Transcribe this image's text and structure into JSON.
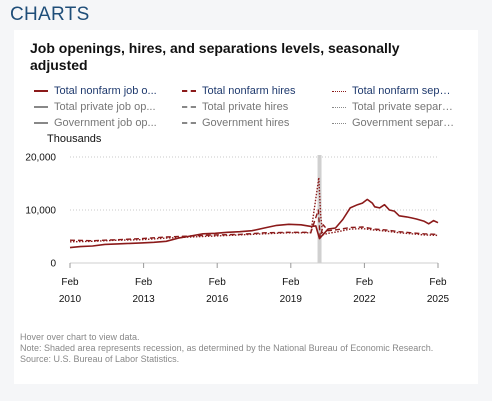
{
  "page": {
    "header": "CHARTS",
    "title": "Job openings, hires, and separations levels, seasonally adjusted",
    "units": "Thousands",
    "hover_note": "Hover over chart to view data.",
    "shaded_note": "Note: Shaded area represents recession, as determined by the National Bureau of Economic Research.",
    "source": "Source: U.S. Bureau of Labor Statistics."
  },
  "legend": [
    {
      "label": "Total nonfarm job o...",
      "color": "#8b1a1a",
      "style": "solid",
      "label_color": "#1f3a6e"
    },
    {
      "label": "Total nonfarm hires",
      "color": "#8b1a1a",
      "style": "dashed",
      "label_color": "#1f3a6e"
    },
    {
      "label": "Total nonfarm separ...",
      "color": "#8b1a1a",
      "style": "dotted",
      "label_color": "#1f3a6e"
    },
    {
      "label": "Total private job op...",
      "color": "#888888",
      "style": "solid",
      "label_color": "#777777"
    },
    {
      "label": "Total private hires",
      "color": "#888888",
      "style": "dashed",
      "label_color": "#777777"
    },
    {
      "label": "Total private separa...",
      "color": "#888888",
      "style": "dotted",
      "label_color": "#777777"
    },
    {
      "label": "Government job op...",
      "color": "#888888",
      "style": "solid",
      "label_color": "#777777"
    },
    {
      "label": "Government hires",
      "color": "#888888",
      "style": "dashed",
      "label_color": "#777777"
    },
    {
      "label": "Government separa...",
      "color": "#888888",
      "style": "dotted",
      "label_color": "#777777"
    }
  ],
  "chart_data": {
    "type": "line",
    "ylabel": "Thousands",
    "ylim": [
      0,
      20000
    ],
    "xlim": [
      2010.08,
      2025.08
    ],
    "y_ticks": [
      {
        "value": 0,
        "label": "0"
      },
      {
        "value": 10000,
        "label": "10,000"
      },
      {
        "value": 20000,
        "label": "20,000"
      }
    ],
    "x_ticks": [
      {
        "value": 2010.08,
        "month": "Feb",
        "year": "2010"
      },
      {
        "value": 2013.08,
        "month": "Feb",
        "year": "2013"
      },
      {
        "value": 2016.08,
        "month": "Feb",
        "year": "2016"
      },
      {
        "value": 2019.08,
        "month": "Feb",
        "year": "2019"
      },
      {
        "value": 2022.08,
        "month": "Feb",
        "year": "2022"
      },
      {
        "value": 2025.08,
        "month": "Feb",
        "year": "2025"
      }
    ],
    "recession": {
      "start": 2020.17,
      "end": 2020.33
    },
    "grid": "horizontal-dotted",
    "legend_position": "top",
    "series": [
      {
        "name": "Total nonfarm job o...",
        "style": "solid",
        "color": "#8b1a1a",
        "points": [
          [
            2010.08,
            2900
          ],
          [
            2010.5,
            3100
          ],
          [
            2011.0,
            3200
          ],
          [
            2011.5,
            3500
          ],
          [
            2012.0,
            3600
          ],
          [
            2012.5,
            3700
          ],
          [
            2013.0,
            3800
          ],
          [
            2013.5,
            3900
          ],
          [
            2014.0,
            4100
          ],
          [
            2014.5,
            4700
          ],
          [
            2015.0,
            5100
          ],
          [
            2015.5,
            5500
          ],
          [
            2016.0,
            5600
          ],
          [
            2016.5,
            5800
          ],
          [
            2017.0,
            5900
          ],
          [
            2017.5,
            6100
          ],
          [
            2018.0,
            6600
          ],
          [
            2018.5,
            7100
          ],
          [
            2019.0,
            7300
          ],
          [
            2019.5,
            7200
          ],
          [
            2019.9,
            6900
          ],
          [
            2020.1,
            7000
          ],
          [
            2020.25,
            4600
          ],
          [
            2020.4,
            5400
          ],
          [
            2020.6,
            6400
          ],
          [
            2020.9,
            6600
          ],
          [
            2021.2,
            8200
          ],
          [
            2021.5,
            10400
          ],
          [
            2021.8,
            11000
          ],
          [
            2022.0,
            11300
          ],
          [
            2022.2,
            12000
          ],
          [
            2022.4,
            11300
          ],
          [
            2022.5,
            10600
          ],
          [
            2022.7,
            10400
          ],
          [
            2022.9,
            11000
          ],
          [
            2023.1,
            10000
          ],
          [
            2023.3,
            9800
          ],
          [
            2023.5,
            8900
          ],
          [
            2023.8,
            8700
          ],
          [
            2024.0,
            8500
          ],
          [
            2024.2,
            8300
          ],
          [
            2024.5,
            7900
          ],
          [
            2024.7,
            7400
          ],
          [
            2024.9,
            8000
          ],
          [
            2025.08,
            7600
          ]
        ]
      },
      {
        "name": "Total nonfarm hires",
        "style": "dashed",
        "color": "#8b1a1a",
        "points": [
          [
            2010.08,
            4300
          ],
          [
            2011.0,
            4200
          ],
          [
            2012.0,
            4400
          ],
          [
            2013.0,
            4600
          ],
          [
            2014.0,
            4900
          ],
          [
            2015.0,
            5100
          ],
          [
            2016.0,
            5300
          ],
          [
            2017.0,
            5400
          ],
          [
            2018.0,
            5700
          ],
          [
            2019.0,
            5800
          ],
          [
            2019.9,
            5800
          ],
          [
            2020.2,
            10000
          ],
          [
            2020.28,
            4800
          ],
          [
            2020.4,
            7200
          ],
          [
            2020.6,
            6100
          ],
          [
            2021.0,
            6300
          ],
          [
            2021.5,
            6700
          ],
          [
            2022.0,
            6800
          ],
          [
            2022.5,
            6400
          ],
          [
            2023.0,
            6200
          ],
          [
            2023.5,
            5900
          ],
          [
            2024.0,
            5700
          ],
          [
            2024.5,
            5500
          ],
          [
            2025.08,
            5400
          ]
        ]
      },
      {
        "name": "Total nonfarm separ...",
        "style": "dotted",
        "color": "#8b1a1a",
        "points": [
          [
            2010.08,
            4000
          ],
          [
            2011.0,
            4100
          ],
          [
            2012.0,
            4300
          ],
          [
            2013.0,
            4400
          ],
          [
            2014.0,
            4700
          ],
          [
            2015.0,
            4900
          ],
          [
            2016.0,
            5100
          ],
          [
            2017.0,
            5300
          ],
          [
            2018.0,
            5500
          ],
          [
            2019.0,
            5700
          ],
          [
            2019.9,
            5700
          ],
          [
            2020.22,
            16100
          ],
          [
            2020.3,
            9000
          ],
          [
            2020.38,
            5300
          ],
          [
            2020.6,
            5600
          ],
          [
            2021.0,
            5900
          ],
          [
            2021.5,
            6400
          ],
          [
            2022.0,
            6500
          ],
          [
            2022.5,
            6200
          ],
          [
            2023.0,
            6000
          ],
          [
            2023.5,
            5700
          ],
          [
            2024.0,
            5500
          ],
          [
            2024.5,
            5300
          ],
          [
            2025.08,
            5200
          ]
        ]
      }
    ]
  }
}
